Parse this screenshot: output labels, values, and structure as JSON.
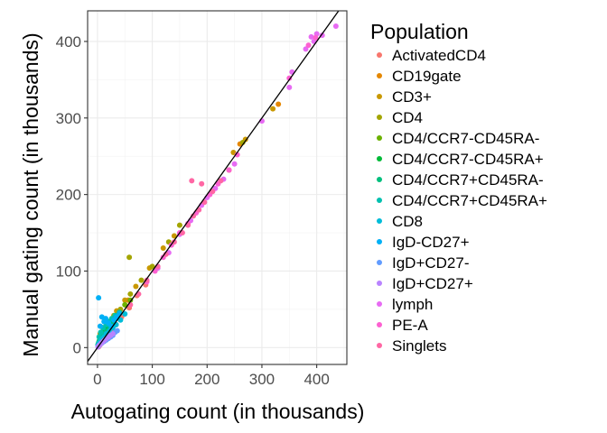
{
  "chart_data": {
    "type": "scatter",
    "xlabel": "Autogating count (in thousands)",
    "ylabel": "Manual gating count (in thousands)",
    "xlim": [
      -18,
      455
    ],
    "ylim": [
      -22,
      440
    ],
    "x_ticks": [
      0,
      100,
      200,
      300,
      400
    ],
    "y_ticks": [
      0,
      100,
      200,
      300,
      400
    ],
    "grid": true,
    "reference_line": "identity",
    "legend": {
      "title": "Population",
      "placement": "right"
    },
    "series": [
      {
        "name": "ActivatedCD4",
        "color": "#F8766D",
        "points": [
          [
            2,
            1
          ],
          [
            4,
            3
          ],
          [
            7,
            6
          ],
          [
            10,
            9
          ],
          [
            14,
            12
          ],
          [
            20,
            18
          ],
          [
            26,
            24
          ],
          [
            34,
            30
          ],
          [
            44,
            40
          ],
          [
            58,
            52
          ],
          [
            72,
            68
          ],
          [
            88,
            82
          ]
        ]
      },
      {
        "name": "CD19gate",
        "color": "#E58700",
        "points": [
          [
            3,
            6
          ],
          [
            6,
            10
          ],
          [
            9,
            14
          ],
          [
            13,
            18
          ],
          [
            18,
            22
          ],
          [
            25,
            30
          ],
          [
            32,
            38
          ],
          [
            40,
            46
          ],
          [
            56,
            62
          ],
          [
            240,
            232
          ],
          [
            260,
            266
          ],
          [
            330,
            318
          ]
        ]
      },
      {
        "name": "CD3+",
        "color": "#C99800",
        "points": [
          [
            5,
            18
          ],
          [
            10,
            26
          ],
          [
            20,
            34
          ],
          [
            35,
            48
          ],
          [
            50,
            62
          ],
          [
            70,
            80
          ],
          [
            95,
            104
          ],
          [
            120,
            130
          ],
          [
            140,
            146
          ],
          [
            248,
            255
          ],
          [
            320,
            312
          ],
          [
            270,
            272
          ]
        ]
      },
      {
        "name": "CD4",
        "color": "#A3A500",
        "points": [
          [
            4,
            10
          ],
          [
            10,
            20
          ],
          [
            18,
            30
          ],
          [
            30,
            42
          ],
          [
            42,
            50
          ],
          [
            60,
            70
          ],
          [
            80,
            88
          ],
          [
            100,
            106
          ],
          [
            130,
            138
          ],
          [
            150,
            160
          ],
          [
            58,
            118
          ],
          [
            265,
            268
          ]
        ]
      },
      {
        "name": "CD4/CCR7-CD45RA-",
        "color": "#6BB100",
        "points": [
          [
            2,
            4
          ],
          [
            5,
            8
          ],
          [
            8,
            12
          ],
          [
            12,
            20
          ],
          [
            16,
            24
          ],
          [
            22,
            30
          ],
          [
            30,
            38
          ],
          [
            40,
            46
          ],
          [
            50,
            56
          ],
          [
            60,
            62
          ]
        ]
      },
      {
        "name": "CD4/CCR7-CD45RA+",
        "color": "#00BA38",
        "points": [
          [
            1,
            4
          ],
          [
            3,
            8
          ],
          [
            6,
            12
          ],
          [
            9,
            16
          ],
          [
            13,
            20
          ],
          [
            18,
            26
          ],
          [
            24,
            32
          ],
          [
            30,
            38
          ],
          [
            36,
            42
          ]
        ]
      },
      {
        "name": "CD4/CCR7+CD45RA-",
        "color": "#00BF7D",
        "points": [
          [
            2,
            6
          ],
          [
            4,
            10
          ],
          [
            8,
            14
          ],
          [
            12,
            18
          ],
          [
            16,
            22
          ],
          [
            22,
            28
          ],
          [
            28,
            34
          ],
          [
            34,
            38
          ]
        ]
      },
      {
        "name": "CD4/CCR7+CD45RA+",
        "color": "#00C0AF",
        "points": [
          [
            3,
            14
          ],
          [
            6,
            20
          ],
          [
            10,
            26
          ],
          [
            16,
            30
          ],
          [
            20,
            34
          ],
          [
            26,
            38
          ],
          [
            32,
            42
          ],
          [
            40,
            46
          ]
        ]
      },
      {
        "name": "CD8",
        "color": "#00BCD8",
        "points": [
          [
            1,
            3
          ],
          [
            3,
            6
          ],
          [
            5,
            8
          ],
          [
            8,
            11
          ],
          [
            12,
            14
          ],
          [
            16,
            18
          ],
          [
            22,
            22
          ],
          [
            28,
            26
          ],
          [
            34,
            30
          ],
          [
            42,
            36
          ],
          [
            50,
            44
          ]
        ]
      },
      {
        "name": "IgD-CD27+",
        "color": "#00B0F6",
        "points": [
          [
            2,
            65
          ],
          [
            5,
            28
          ],
          [
            8,
            40
          ],
          [
            12,
            34
          ],
          [
            15,
            38
          ],
          [
            20,
            32
          ],
          [
            25,
            28
          ],
          [
            30,
            36
          ],
          [
            35,
            40
          ],
          [
            40,
            44
          ]
        ]
      },
      {
        "name": "IgD+CD27-",
        "color": "#619CFF",
        "points": [
          [
            2,
            2
          ],
          [
            5,
            4
          ],
          [
            8,
            6
          ],
          [
            12,
            8
          ],
          [
            16,
            10
          ],
          [
            20,
            12
          ],
          [
            24,
            14
          ],
          [
            28,
            16
          ],
          [
            32,
            20
          ],
          [
            36,
            22
          ]
        ]
      },
      {
        "name": "IgD+CD27+",
        "color": "#B983FF",
        "points": [
          [
            1,
            1
          ],
          [
            3,
            3
          ],
          [
            5,
            4
          ],
          [
            7,
            6
          ],
          [
            10,
            8
          ],
          [
            13,
            10
          ],
          [
            16,
            12
          ],
          [
            20,
            14
          ],
          [
            24,
            16
          ],
          [
            28,
            18
          ]
        ]
      },
      {
        "name": "lymph",
        "color": "#E76BF3",
        "points": [
          [
            110,
            104
          ],
          [
            130,
            124
          ],
          [
            150,
            148
          ],
          [
            170,
            166
          ],
          [
            190,
            186
          ],
          [
            200,
            196
          ],
          [
            215,
            208
          ],
          [
            230,
            220
          ],
          [
            250,
            240
          ],
          [
            300,
            296
          ],
          [
            350,
            340
          ],
          [
            380,
            390
          ],
          [
            395,
            400
          ],
          [
            410,
            408
          ],
          [
            435,
            420
          ],
          [
            390,
            406
          ],
          [
            400,
            410
          ],
          [
            355,
            360
          ]
        ]
      },
      {
        "name": "PE-A",
        "color": "#FD61D1",
        "points": [
          [
            90,
            86
          ],
          [
            105,
            100
          ],
          [
            120,
            118
          ],
          [
            135,
            134
          ],
          [
            150,
            150
          ],
          [
            165,
            162
          ],
          [
            180,
            176
          ],
          [
            195,
            190
          ],
          [
            205,
            200
          ],
          [
            220,
            214
          ],
          [
            240,
            232
          ],
          [
            255,
            252
          ],
          [
            350,
            352
          ],
          [
            385,
            395
          ],
          [
            398,
            405
          ]
        ]
      },
      {
        "name": "Singlets",
        "color": "#FF67A4",
        "points": [
          [
            60,
            56
          ],
          [
            75,
            70
          ],
          [
            90,
            88
          ],
          [
            110,
            106
          ],
          [
            125,
            122
          ],
          [
            140,
            138
          ],
          [
            155,
            150
          ],
          [
            165,
            160
          ],
          [
            175,
            172
          ],
          [
            185,
            180
          ],
          [
            195,
            190
          ],
          [
            210,
            204
          ],
          [
            225,
            218
          ],
          [
            172,
            218
          ],
          [
            190,
            214
          ]
        ]
      }
    ]
  }
}
